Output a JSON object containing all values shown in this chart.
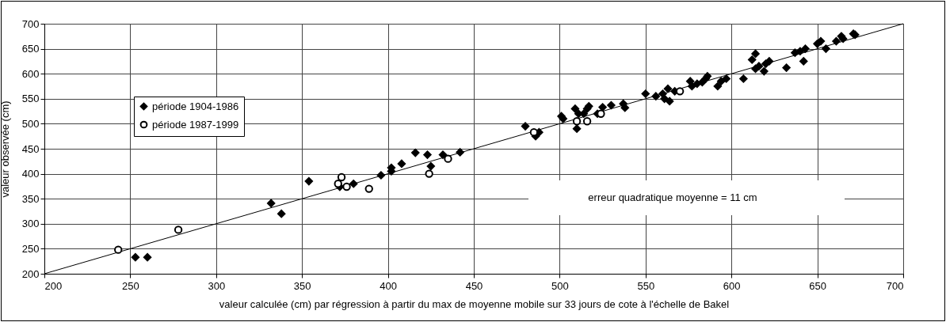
{
  "chart_data": {
    "type": "scatter",
    "xlabel": "valeur calculée (cm) par régression à  partir du max de moyenne mobile sur 33 jours de cote à l'échelle de Bakel",
    "ylabel": "valeur observée (cm)",
    "annotations": [
      "erreur  quadratique moyenne = 11 cm"
    ],
    "xlim": [
      200,
      700
    ],
    "xticks": [
      200,
      250,
      300,
      350,
      400,
      450,
      500,
      550,
      600,
      650,
      700
    ],
    "ylim": [
      200,
      700
    ],
    "yticks": [
      200,
      250,
      300,
      350,
      400,
      450,
      500,
      550,
      600,
      650,
      700
    ],
    "grid": true,
    "legend": "top left",
    "series": [
      {
        "name": "période 1904-1986",
        "color": "#000000",
        "marker": "diamond",
        "x": [
          253,
          260,
          332,
          338,
          354,
          372,
          380,
          396,
          402,
          402,
          408,
          416,
          423,
          425,
          432,
          442,
          480,
          486,
          488,
          501,
          502,
          509,
          510,
          511,
          514,
          516,
          517,
          522,
          525,
          530,
          537,
          538,
          550,
          556,
          560,
          561,
          563,
          564,
          567,
          576,
          577,
          580,
          583,
          585,
          586,
          592,
          594,
          597,
          607,
          612,
          614,
          614,
          616,
          619,
          620,
          622,
          632,
          637,
          640,
          642,
          643,
          650,
          652,
          655,
          661,
          664,
          665,
          671,
          672
        ],
        "values": [
          233,
          233,
          341,
          320,
          385,
          374,
          380,
          397,
          405,
          412,
          420,
          442,
          438,
          415,
          438,
          443,
          495,
          475,
          483,
          515,
          510,
          530,
          490,
          520,
          520,
          530,
          535,
          520,
          533,
          537,
          540,
          532,
          560,
          555,
          560,
          550,
          570,
          545,
          565,
          585,
          575,
          580,
          583,
          590,
          595,
          575,
          585,
          590,
          590,
          628,
          640,
          610,
          615,
          605,
          620,
          625,
          612,
          642,
          645,
          625,
          650,
          660,
          665,
          650,
          665,
          675,
          670,
          680,
          678
        ]
      },
      {
        "name": "période 1987-1999",
        "color": "#000000",
        "marker": "circle",
        "x": [
          243,
          278,
          371,
          373,
          376,
          389,
          424,
          435,
          485,
          510,
          516,
          524,
          570
        ],
        "values": [
          248,
          288,
          380,
          393,
          374,
          370,
          400,
          430,
          483,
          505,
          505,
          520,
          565
        ]
      },
      {
        "type": "line",
        "color": "#000000",
        "x": [
          200,
          700
        ],
        "values": [
          200,
          700
        ]
      }
    ]
  }
}
